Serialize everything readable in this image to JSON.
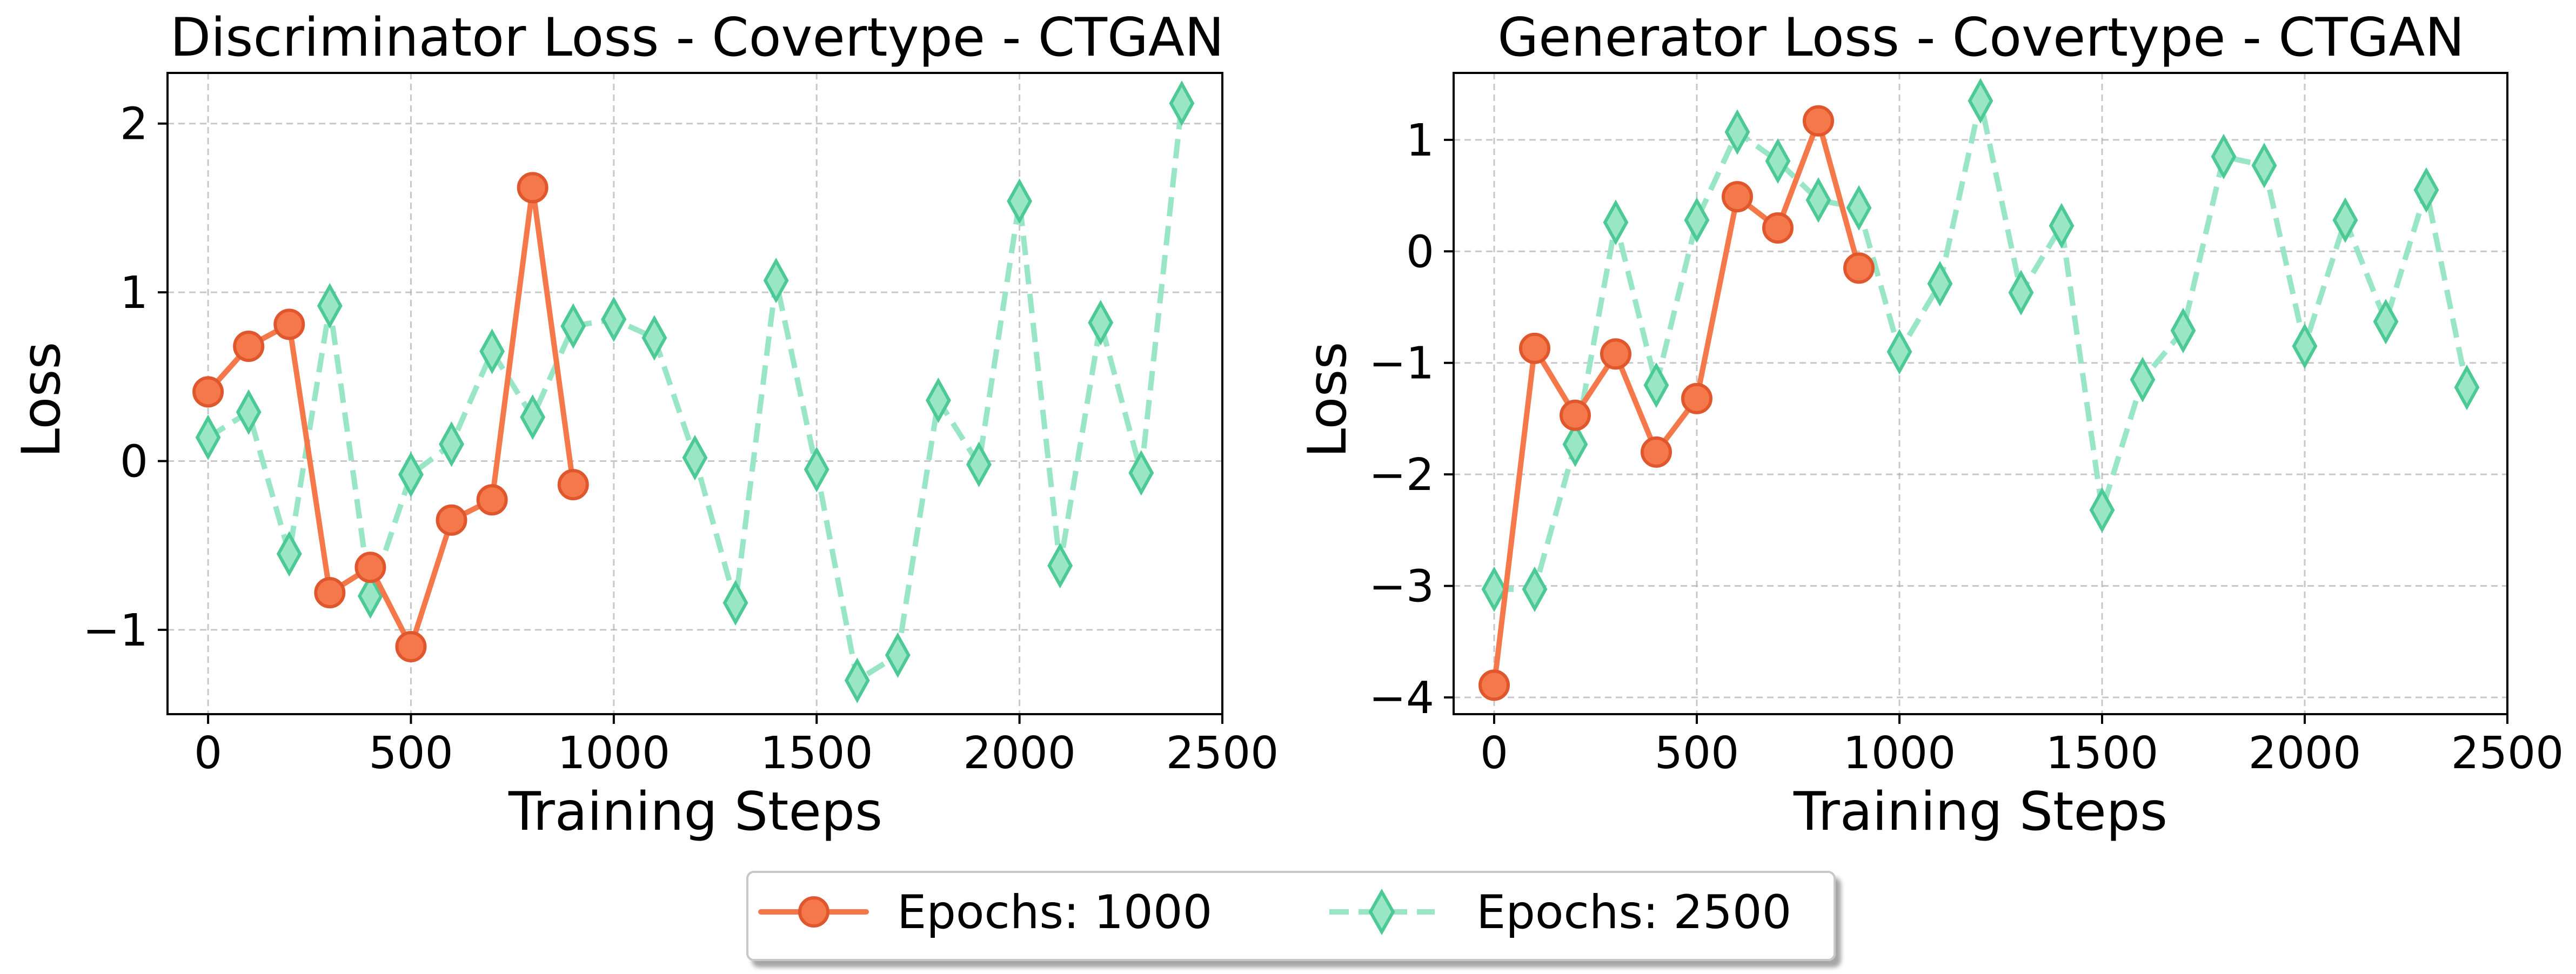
{
  "chart_data": [
    {
      "type": "line",
      "title": "Discriminator Loss - Covertype - CTGAN",
      "xlabel": "Training Steps",
      "ylabel": "Loss",
      "xlim": [
        -100,
        2500
      ],
      "ylim": [
        -1.5,
        2.3
      ],
      "xticks": [
        0,
        500,
        1000,
        1500,
        2000,
        2500
      ],
      "yticks": [
        -1,
        0,
        1,
        2
      ],
      "grid": true,
      "series": [
        {
          "name": "Epochs: 1000",
          "x": [
            0,
            100,
            200,
            300,
            400,
            500,
            600,
            700,
            800,
            900
          ],
          "values": [
            0.41,
            0.68,
            0.81,
            -0.78,
            -0.63,
            -1.1,
            -0.35,
            -0.23,
            1.62,
            -0.14
          ]
        },
        {
          "name": "Epochs: 2500",
          "x": [
            0,
            100,
            200,
            300,
            400,
            500,
            600,
            700,
            800,
            900,
            1000,
            1100,
            1200,
            1300,
            1400,
            1500,
            1600,
            1700,
            1800,
            1900,
            2000,
            2100,
            2200,
            2300,
            2400
          ],
          "values": [
            0.14,
            0.29,
            -0.55,
            0.92,
            -0.8,
            -0.08,
            0.1,
            0.65,
            0.26,
            0.8,
            0.84,
            0.73,
            0.02,
            -0.84,
            1.07,
            -0.05,
            -1.3,
            -1.15,
            0.36,
            -0.02,
            1.54,
            -0.62,
            0.82,
            -0.07,
            2.12
          ]
        }
      ]
    },
    {
      "type": "line",
      "title": "Generator Loss - Covertype - CTGAN",
      "xlabel": "Training Steps",
      "ylabel": "Loss",
      "xlim": [
        -100,
        2500
      ],
      "ylim": [
        -4.15,
        1.6
      ],
      "xticks": [
        0,
        500,
        1000,
        1500,
        2000,
        2500
      ],
      "yticks": [
        -4,
        -3,
        -2,
        -1,
        0,
        1
      ],
      "grid": true,
      "series": [
        {
          "name": "Epochs: 1000",
          "x": [
            0,
            100,
            200,
            300,
            400,
            500,
            600,
            700,
            800,
            900
          ],
          "values": [
            -3.89,
            -0.87,
            -1.47,
            -0.92,
            -1.8,
            -1.32,
            0.49,
            0.21,
            1.17,
            -0.15
          ]
        },
        {
          "name": "Epochs: 2500",
          "x": [
            0,
            100,
            200,
            300,
            400,
            500,
            600,
            700,
            800,
            900,
            1000,
            1100,
            1200,
            1300,
            1400,
            1500,
            1600,
            1700,
            1800,
            1900,
            2000,
            2100,
            2200,
            2300,
            2400
          ],
          "values": [
            -3.03,
            -3.03,
            -1.73,
            0.26,
            -1.2,
            0.28,
            1.07,
            0.81,
            0.46,
            0.39,
            -0.9,
            -0.29,
            1.35,
            -0.37,
            0.23,
            -2.32,
            -1.15,
            -0.71,
            0.85,
            0.77,
            -0.85,
            0.28,
            -0.63,
            0.55,
            -1.22
          ]
        }
      ]
    }
  ],
  "legend": {
    "placement": "bottom-center",
    "entries": [
      "Epochs: 1000",
      "Epochs: 2500"
    ]
  },
  "colors": {
    "epochs_1000_line": "#f4784a",
    "epochs_1000_edge": "#e0562d",
    "epochs_2500_line": "#98e6c6",
    "epochs_2500_edge": "#4cc994"
  }
}
